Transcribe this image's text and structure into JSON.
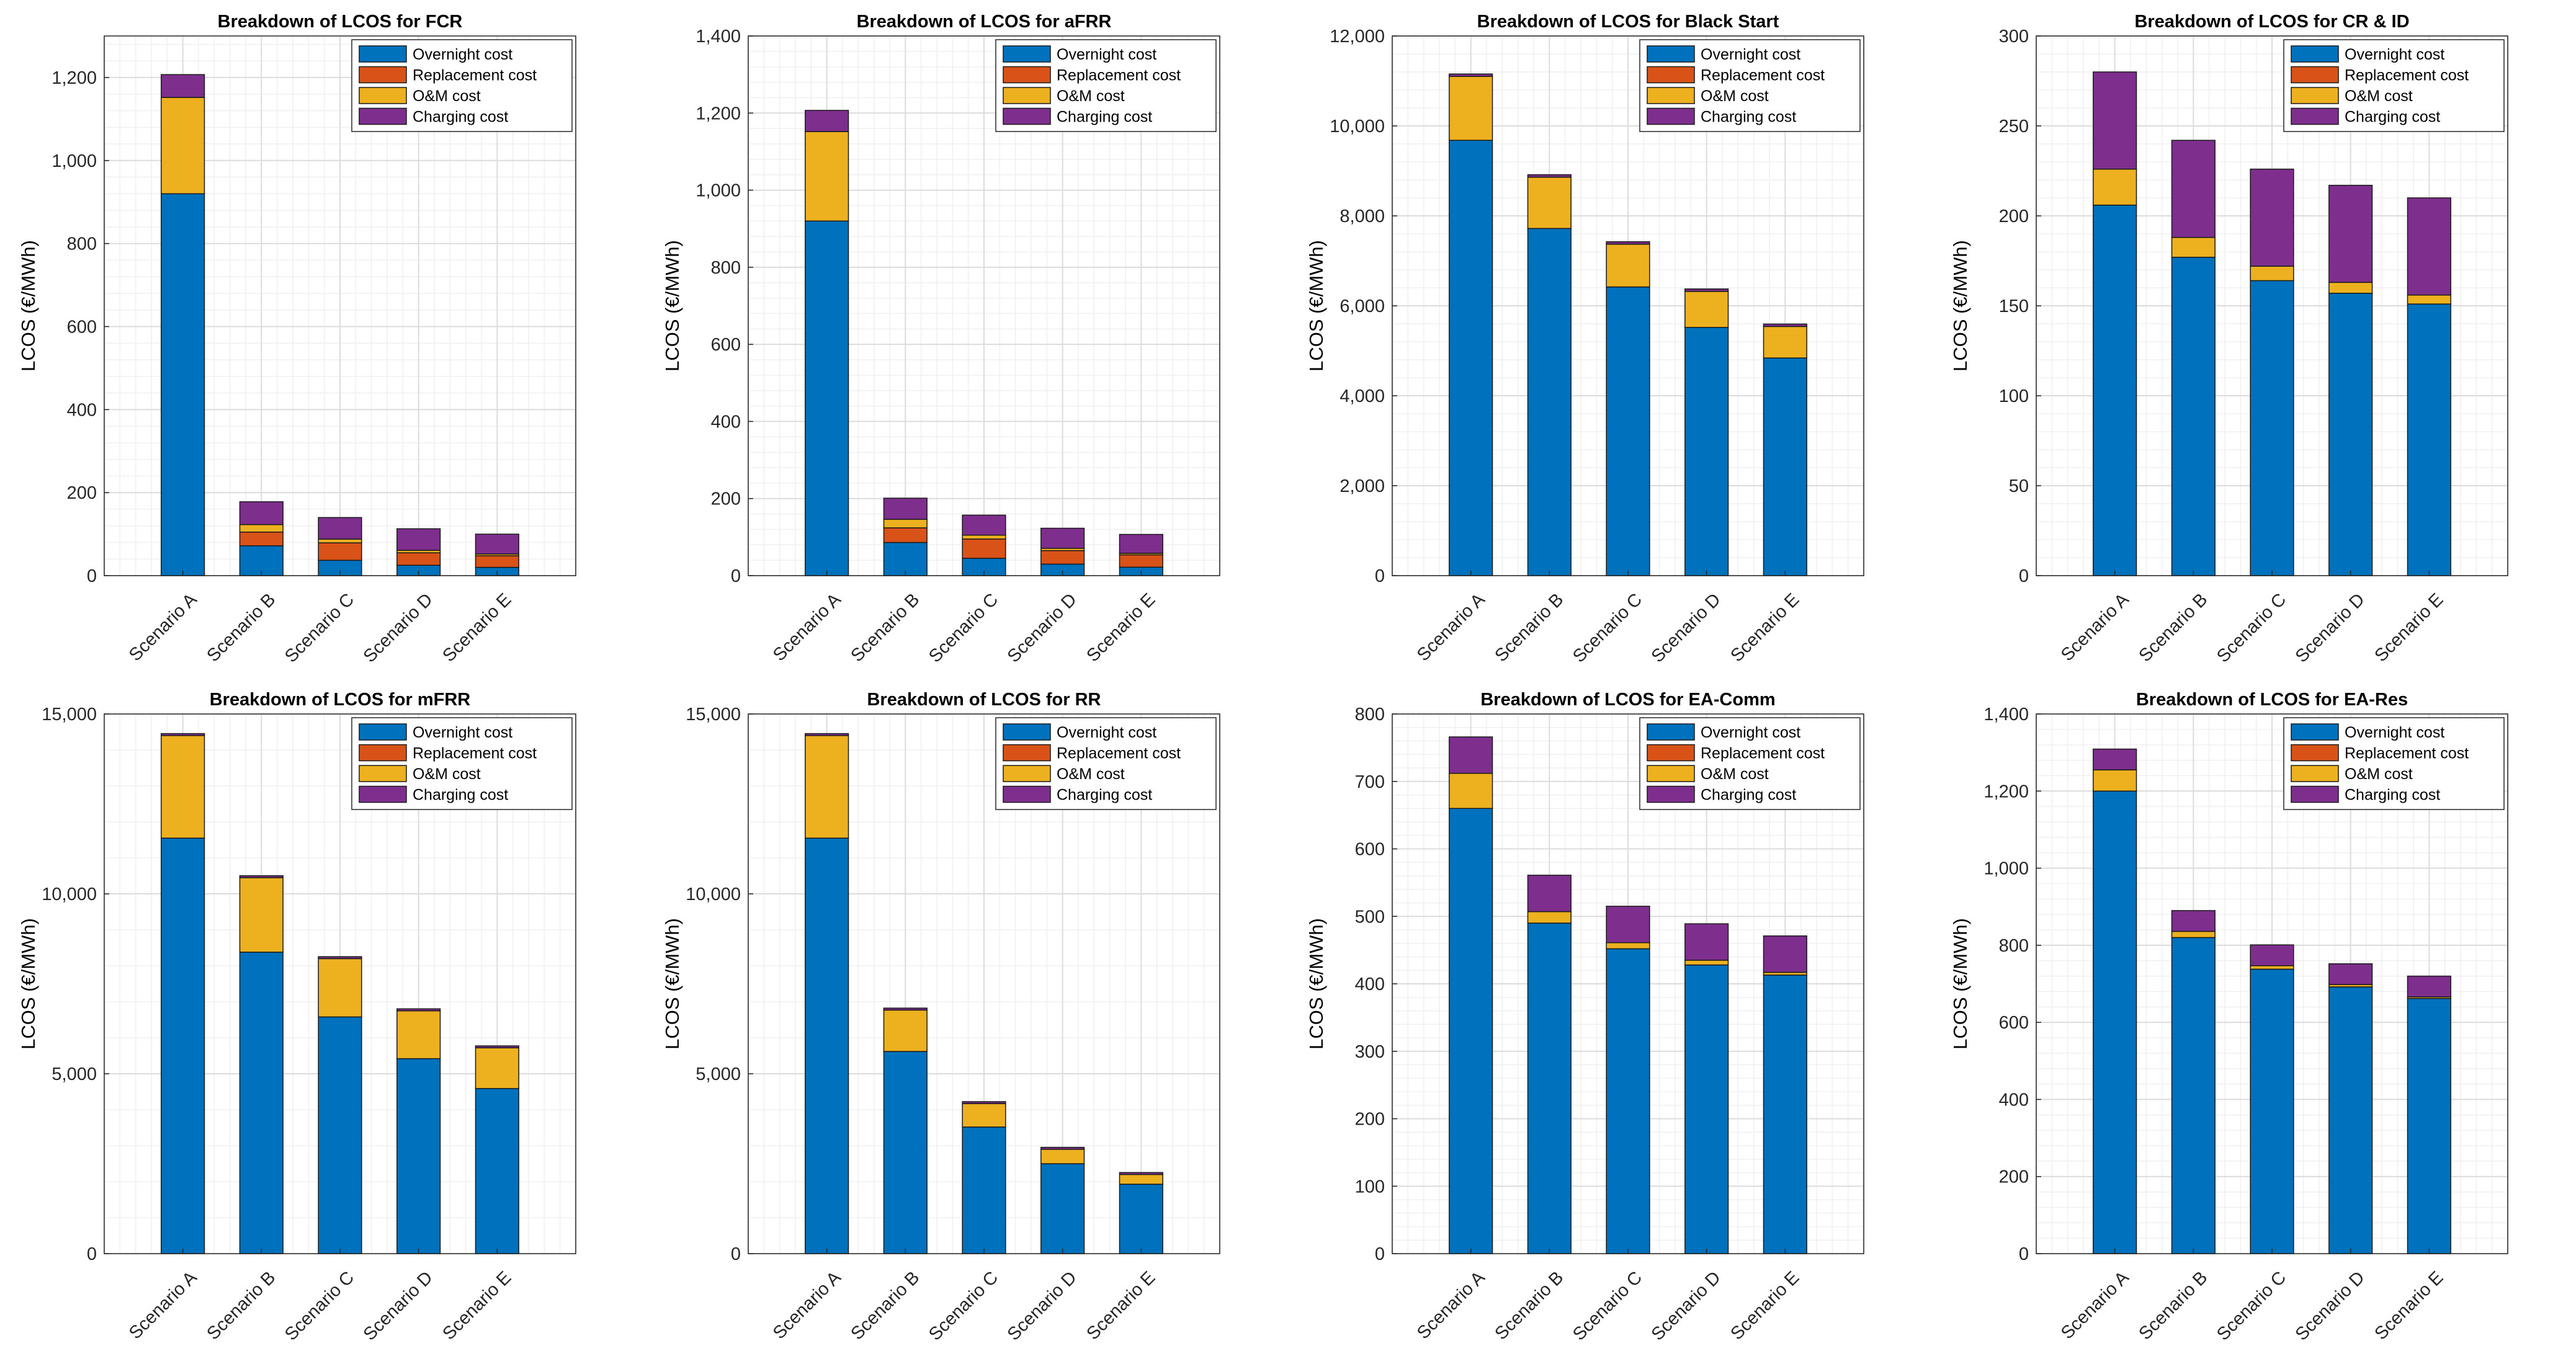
{
  "colors": {
    "overnight": "#0072BD",
    "replacement": "#D95319",
    "om": "#EDB120",
    "charging": "#7E2F8E"
  },
  "chart_data": [
    {
      "type": "bar",
      "stacked": true,
      "title": "Breakdown of LCOS for FCR",
      "ylabel": "LCOS (€/MWh)",
      "xlabel": "",
      "categories": [
        "Scenario A",
        "Scenario B",
        "Scenario C",
        "Scenario D",
        "Scenario E"
      ],
      "yticks": [
        0,
        200,
        400,
        600,
        800,
        1000,
        1200
      ],
      "ytick_labels": [
        "0",
        "200",
        "400",
        "600",
        "800",
        "1,000",
        "1,200"
      ],
      "ylim": [
        0,
        1300
      ],
      "legend": "top-right",
      "series": [
        {
          "name": "Overnight cost",
          "color_key": "overnight",
          "values": [
            920,
            72,
            37,
            25,
            20
          ]
        },
        {
          "name": "Replacement cost",
          "color_key": "replacement",
          "values": [
            0,
            33,
            42,
            30,
            28
          ]
        },
        {
          "name": "O&M cost",
          "color_key": "om",
          "values": [
            232,
            18,
            9,
            6,
            4
          ]
        },
        {
          "name": "Charging cost",
          "color_key": "charging",
          "values": [
            55,
            55,
            52,
            52,
            48
          ]
        }
      ]
    },
    {
      "type": "bar",
      "stacked": true,
      "title": "Breakdown of LCOS for aFRR",
      "ylabel": "LCOS (€/MWh)",
      "xlabel": "",
      "categories": [
        "Scenario A",
        "Scenario B",
        "Scenario C",
        "Scenario D",
        "Scenario E"
      ],
      "yticks": [
        0,
        200,
        400,
        600,
        800,
        1000,
        1200,
        1400
      ],
      "ytick_labels": [
        "0",
        "200",
        "400",
        "600",
        "800",
        "1,000",
        "1,200",
        "1,400"
      ],
      "ylim": [
        0,
        1400
      ],
      "legend": "top-right",
      "series": [
        {
          "name": "Overnight cost",
          "color_key": "overnight",
          "values": [
            920,
            86,
            45,
            30,
            22
          ]
        },
        {
          "name": "Replacement cost",
          "color_key": "replacement",
          "values": [
            0,
            38,
            50,
            35,
            32
          ]
        },
        {
          "name": "O&M cost",
          "color_key": "om",
          "values": [
            232,
            22,
            10,
            6,
            4
          ]
        },
        {
          "name": "Charging cost",
          "color_key": "charging",
          "values": [
            55,
            55,
            52,
            52,
            49
          ]
        }
      ]
    },
    {
      "type": "bar",
      "stacked": true,
      "title": "Breakdown of LCOS for Black Start",
      "ylabel": "LCOS (€/MWh)",
      "xlabel": "",
      "categories": [
        "Scenario A",
        "Scenario B",
        "Scenario C",
        "Scenario D",
        "Scenario E"
      ],
      "yticks": [
        0,
        2000,
        4000,
        6000,
        8000,
        10000,
        12000
      ],
      "ytick_labels": [
        "0",
        "2,000",
        "4,000",
        "6,000",
        "8,000",
        "10,000",
        "12,000"
      ],
      "ylim": [
        0,
        12000
      ],
      "legend": "top-right",
      "series": [
        {
          "name": "Overnight cost",
          "color_key": "overnight",
          "values": [
            9680,
            7720,
            6420,
            5520,
            4840
          ]
        },
        {
          "name": "Replacement cost",
          "color_key": "replacement",
          "values": [
            0,
            0,
            0,
            0,
            0
          ]
        },
        {
          "name": "O&M cost",
          "color_key": "om",
          "values": [
            1420,
            1140,
            950,
            800,
            700
          ]
        },
        {
          "name": "Charging cost",
          "color_key": "charging",
          "values": [
            55,
            55,
            55,
            55,
            55
          ]
        }
      ]
    },
    {
      "type": "bar",
      "stacked": true,
      "title": "Breakdown of LCOS for CR & ID",
      "ylabel": "LCOS (€/MWh)",
      "xlabel": "",
      "categories": [
        "Scenario A",
        "Scenario B",
        "Scenario C",
        "Scenario D",
        "Scenario E"
      ],
      "yticks": [
        0,
        50,
        100,
        150,
        200,
        250,
        300
      ],
      "ytick_labels": [
        "0",
        "50",
        "100",
        "150",
        "200",
        "250",
        "300"
      ],
      "ylim": [
        0,
        300
      ],
      "legend": "top-right",
      "series": [
        {
          "name": "Overnight cost",
          "color_key": "overnight",
          "values": [
            206,
            177,
            164,
            157,
            151
          ]
        },
        {
          "name": "Replacement cost",
          "color_key": "replacement",
          "values": [
            0,
            0,
            0,
            0,
            0
          ]
        },
        {
          "name": "O&M cost",
          "color_key": "om",
          "values": [
            20,
            11,
            8,
            6,
            5
          ]
        },
        {
          "name": "Charging cost",
          "color_key": "charging",
          "values": [
            54,
            54,
            54,
            54,
            54
          ]
        }
      ]
    },
    {
      "type": "bar",
      "stacked": true,
      "title": "Breakdown of LCOS for mFRR",
      "ylabel": "LCOS (€/MWh)",
      "xlabel": "",
      "categories": [
        "Scenario A",
        "Scenario B",
        "Scenario C",
        "Scenario D",
        "Scenario E"
      ],
      "yticks": [
        0,
        5000,
        10000,
        15000
      ],
      "ytick_labels": [
        "0",
        "5,000",
        "10,000",
        "15,000"
      ],
      "ylim": [
        0,
        15000
      ],
      "legend": "top-right",
      "series": [
        {
          "name": "Overnight cost",
          "color_key": "overnight",
          "values": [
            11550,
            8380,
            6580,
            5420,
            4590
          ]
        },
        {
          "name": "Replacement cost",
          "color_key": "replacement",
          "values": [
            0,
            0,
            0,
            0,
            0
          ]
        },
        {
          "name": "O&M cost",
          "color_key": "om",
          "values": [
            2850,
            2070,
            1620,
            1330,
            1130
          ]
        },
        {
          "name": "Charging cost",
          "color_key": "charging",
          "values": [
            55,
            55,
            55,
            55,
            55
          ]
        }
      ]
    },
    {
      "type": "bar",
      "stacked": true,
      "title": "Breakdown of LCOS for RR",
      "ylabel": "LCOS (€/MWh)",
      "xlabel": "",
      "categories": [
        "Scenario A",
        "Scenario B",
        "Scenario C",
        "Scenario D",
        "Scenario E"
      ],
      "yticks": [
        0,
        5000,
        10000,
        15000
      ],
      "ytick_labels": [
        "0",
        "5,000",
        "10,000",
        "15,000"
      ],
      "ylim": [
        0,
        15000
      ],
      "legend": "top-right",
      "series": [
        {
          "name": "Overnight cost",
          "color_key": "overnight",
          "values": [
            11550,
            5620,
            3520,
            2500,
            1930
          ]
        },
        {
          "name": "Replacement cost",
          "color_key": "replacement",
          "values": [
            0,
            0,
            0,
            0,
            0
          ]
        },
        {
          "name": "O&M cost",
          "color_key": "om",
          "values": [
            2850,
            1150,
            650,
            400,
            270
          ]
        },
        {
          "name": "Charging cost",
          "color_key": "charging",
          "values": [
            55,
            55,
            55,
            55,
            55
          ]
        }
      ]
    },
    {
      "type": "bar",
      "stacked": true,
      "title": "Breakdown of LCOS for EA-Comm",
      "ylabel": "LCOS (€/MWh)",
      "xlabel": "",
      "categories": [
        "Scenario A",
        "Scenario B",
        "Scenario C",
        "Scenario D",
        "Scenario E"
      ],
      "yticks": [
        0,
        100,
        200,
        300,
        400,
        500,
        600,
        700,
        800
      ],
      "ytick_labels": [
        "0",
        "100",
        "200",
        "300",
        "400",
        "500",
        "600",
        "700",
        "800"
      ],
      "ylim": [
        0,
        800
      ],
      "legend": "top-right",
      "series": [
        {
          "name": "Overnight cost",
          "color_key": "overnight",
          "values": [
            660,
            490,
            452,
            428,
            413
          ]
        },
        {
          "name": "Replacement cost",
          "color_key": "replacement",
          "values": [
            0,
            0,
            0,
            0,
            0
          ]
        },
        {
          "name": "O&M cost",
          "color_key": "om",
          "values": [
            52,
            17,
            9,
            7,
            4
          ]
        },
        {
          "name": "Charging cost",
          "color_key": "charging",
          "values": [
            54,
            54,
            54,
            54,
            54
          ]
        }
      ]
    },
    {
      "type": "bar",
      "stacked": true,
      "title": "Breakdown of LCOS for EA-Res",
      "ylabel": "LCOS (€/MWh)",
      "xlabel": "",
      "categories": [
        "Scenario A",
        "Scenario B",
        "Scenario C",
        "Scenario D",
        "Scenario E"
      ],
      "yticks": [
        0,
        200,
        400,
        600,
        800,
        1000,
        1200,
        1400
      ],
      "ytick_labels": [
        "0",
        "200",
        "400",
        "600",
        "800",
        "1,000",
        "1,200",
        "1,400"
      ],
      "ylim": [
        0,
        1400
      ],
      "legend": "top-right",
      "series": [
        {
          "name": "Overnight cost",
          "color_key": "overnight",
          "values": [
            1200,
            820,
            738,
            692,
            662
          ]
        },
        {
          "name": "Replacement cost",
          "color_key": "replacement",
          "values": [
            0,
            0,
            0,
            0,
            0
          ]
        },
        {
          "name": "O&M cost",
          "color_key": "om",
          "values": [
            55,
            16,
            9,
            6,
            4
          ]
        },
        {
          "name": "Charging cost",
          "color_key": "charging",
          "values": [
            54,
            54,
            54,
            54,
            54
          ]
        }
      ]
    }
  ]
}
